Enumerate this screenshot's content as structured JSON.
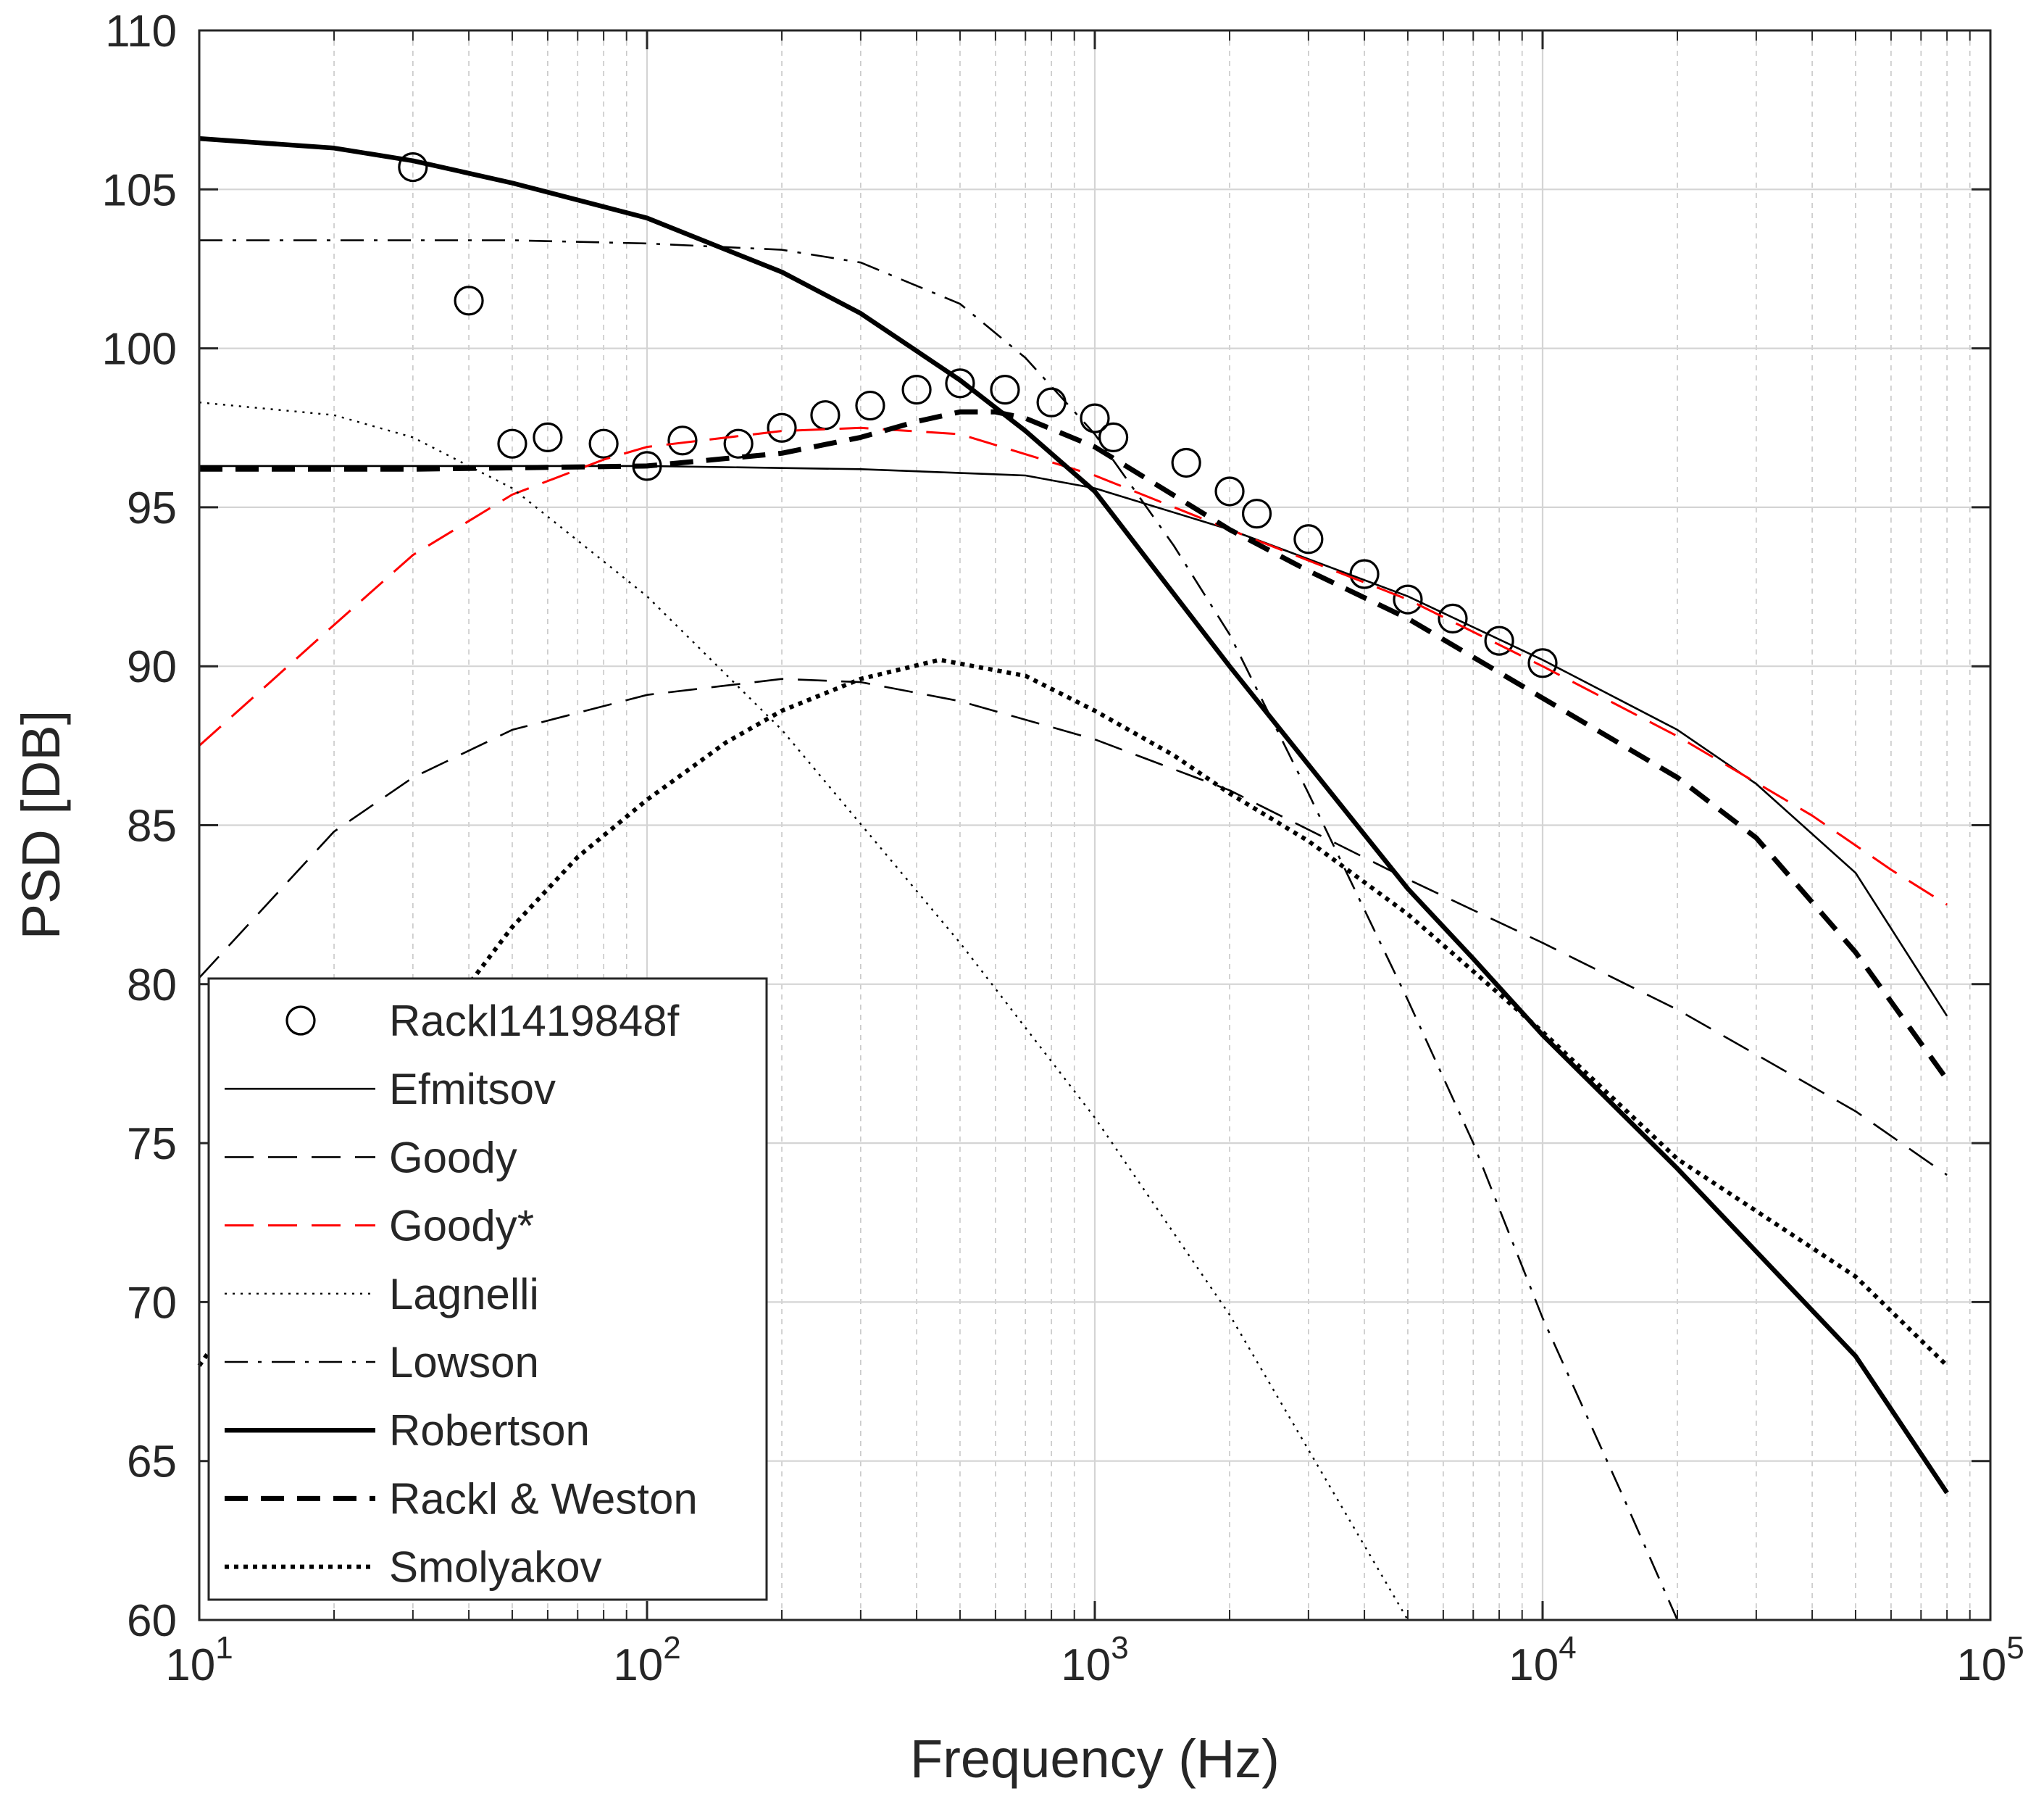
{
  "chart_data": {
    "type": "line",
    "title": "",
    "xlabel": "Frequency (Hz)",
    "ylabel": "PSD [DB]",
    "xscale": "log",
    "xlim": [
      10,
      100000
    ],
    "ylim": [
      60,
      110
    ],
    "grid": true,
    "legend_position": "bottom-left",
    "xticks": [
      {
        "base": "10",
        "exp": "1"
      },
      {
        "base": "10",
        "exp": "2"
      },
      {
        "base": "10",
        "exp": "3"
      },
      {
        "base": "10",
        "exp": "4"
      },
      {
        "base": "10",
        "exp": "5"
      }
    ],
    "yticks": [
      "60",
      "65",
      "70",
      "75",
      "80",
      "85",
      "90",
      "95",
      "100",
      "105",
      "110"
    ],
    "series": [
      {
        "name": "Rackl1419848f",
        "style": "marker-circle",
        "color": "#000000",
        "x": [
          30,
          40,
          50,
          60,
          80,
          100,
          120,
          160,
          200,
          250,
          315,
          400,
          500,
          630,
          800,
          1000,
          1100,
          1600,
          2000,
          2300,
          3000,
          4000,
          5000,
          6300,
          8000,
          10000
        ],
        "y": [
          105.7,
          101.5,
          97.0,
          97.2,
          97.0,
          96.3,
          97.1,
          97.0,
          97.5,
          97.9,
          98.2,
          98.7,
          98.9,
          98.7,
          98.3,
          97.8,
          97.2,
          96.4,
          95.5,
          94.8,
          94.0,
          92.9,
          92.1,
          91.5,
          90.8,
          90.1
        ]
      },
      {
        "name": "Efmitsov",
        "style": "solid-thin",
        "color": "#000000",
        "x": [
          10,
          30,
          100,
          300,
          700,
          1000,
          2000,
          5000,
          10000,
          20000,
          30000,
          50000,
          80000
        ],
        "y": [
          96.3,
          96.3,
          96.3,
          96.2,
          96.0,
          95.6,
          94.3,
          92.2,
          90.2,
          88.0,
          86.3,
          83.5,
          79.0
        ]
      },
      {
        "name": "Goody",
        "style": "dash-thin",
        "color": "#000000",
        "x": [
          10,
          20,
          30,
          50,
          100,
          200,
          300,
          500,
          1000,
          2000,
          5000,
          10000,
          20000,
          50000,
          80000
        ],
        "y": [
          80.2,
          84.8,
          86.5,
          88.0,
          89.1,
          89.6,
          89.5,
          88.9,
          87.7,
          86.1,
          83.3,
          81.3,
          79.2,
          76.0,
          74.0
        ]
      },
      {
        "name": "Goody*",
        "style": "dash-thin-red",
        "color": "#ff0000",
        "x": [
          10,
          20,
          30,
          50,
          80,
          100,
          200,
          300,
          500,
          1000,
          2000,
          5000,
          10000,
          20000,
          40000,
          60000,
          80000
        ],
        "y": [
          87.5,
          91.3,
          93.5,
          95.4,
          96.5,
          96.9,
          97.4,
          97.5,
          97.3,
          96.0,
          94.3,
          92.1,
          90.0,
          87.8,
          85.3,
          83.6,
          82.5
        ]
      },
      {
        "name": "Lagnelli",
        "style": "dotted-thin",
        "color": "#000000",
        "x": [
          10,
          20,
          30,
          50,
          80,
          100,
          200,
          500,
          1000,
          2000,
          5000
        ],
        "y": [
          98.3,
          97.9,
          97.2,
          95.6,
          93.3,
          92.2,
          88.0,
          81.3,
          75.8,
          69.6,
          60.0
        ]
      },
      {
        "name": "Lowson",
        "style": "dashdot-thin",
        "color": "#000000",
        "x": [
          10,
          50,
          100,
          200,
          300,
          500,
          700,
          1000,
          1500,
          2000,
          3000,
          5000,
          7000,
          10000,
          15000,
          20000
        ],
        "y": [
          103.4,
          103.4,
          103.3,
          103.1,
          102.7,
          101.4,
          99.7,
          97.3,
          93.8,
          91.0,
          86.0,
          79.5,
          75.0,
          69.5,
          64.0,
          60.0
        ]
      },
      {
        "name": "Robertson",
        "style": "solid-thick",
        "color": "#000000",
        "x": [
          10,
          20,
          30,
          50,
          100,
          200,
          300,
          500,
          700,
          1000,
          2000,
          3000,
          5000,
          7000,
          10000,
          20000,
          50000,
          80000
        ],
        "y": [
          106.6,
          106.3,
          105.9,
          105.2,
          104.1,
          102.4,
          101.1,
          99.0,
          97.4,
          95.5,
          90.0,
          86.9,
          83.0,
          80.8,
          78.4,
          74.2,
          68.3,
          64.0
        ]
      },
      {
        "name": "Rackl & Weston",
        "style": "dash-thick",
        "color": "#000000",
        "x": [
          10,
          30,
          100,
          200,
          300,
          400,
          500,
          600,
          700,
          1000,
          2000,
          3000,
          5000,
          10000,
          20000,
          30000,
          50000,
          80000
        ],
        "y": [
          96.2,
          96.2,
          96.3,
          96.7,
          97.2,
          97.7,
          98.0,
          98.0,
          97.8,
          96.9,
          94.3,
          93.0,
          91.5,
          89.0,
          86.5,
          84.6,
          81.0,
          77.0
        ]
      },
      {
        "name": "Smolyakov",
        "style": "dotted-thick",
        "color": "#000000",
        "x": [
          10,
          20,
          30,
          40,
          50,
          70,
          100,
          150,
          200,
          300,
          450,
          700,
          1000,
          1500,
          2000,
          3000,
          5000,
          10000,
          20000,
          50000,
          80000
        ],
        "y": [
          68.0,
          74.0,
          77.8,
          80.0,
          81.8,
          84.0,
          85.8,
          87.6,
          88.6,
          89.6,
          90.2,
          89.7,
          88.6,
          87.2,
          86.0,
          84.5,
          82.2,
          78.5,
          74.5,
          70.8,
          68.0
        ]
      }
    ]
  }
}
